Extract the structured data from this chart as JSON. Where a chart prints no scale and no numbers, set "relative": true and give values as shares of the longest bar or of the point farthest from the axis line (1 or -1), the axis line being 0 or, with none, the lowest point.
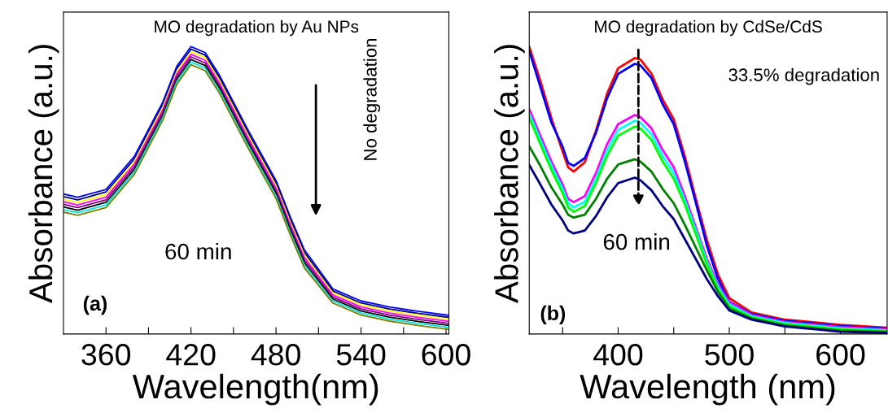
{
  "chart_data": [
    {
      "type": "line",
      "relative": true,
      "title": "MO degradation by Au NPs",
      "xlabel": "Wavelength(nm)",
      "ylabel": "Absorbance (a.u.)",
      "xlim": [
        330,
        602
      ],
      "xticks": [
        360,
        {
          "value": 390,
          "label": null
        },
        420,
        {
          "value": 450,
          "label": null
        },
        480,
        {
          "value": 510,
          "label": null
        },
        540,
        {
          "value": 570,
          "label": null
        },
        600
      ],
      "tick_labels": "x",
      "marker": "none",
      "line_style": "solid",
      "annotations": [
        "No degradation",
        "60 min",
        "(a)"
      ],
      "x": [
        330,
        340,
        360,
        380,
        400,
        410,
        420,
        430,
        440,
        460,
        480,
        490,
        500,
        520,
        540,
        560,
        580,
        602
      ],
      "series": [
        {
          "color": "#0000ff",
          "values": [
            0.487,
            0.476,
            0.503,
            0.618,
            0.806,
            0.932,
            1.0,
            0.979,
            0.901,
            0.712,
            0.534,
            0.408,
            0.293,
            0.157,
            0.115,
            0.094,
            0.079,
            0.065
          ]
        },
        {
          "color": "#000080",
          "values": [
            0.478,
            0.467,
            0.494,
            0.609,
            0.797,
            0.923,
            0.991,
            0.97,
            0.892,
            0.703,
            0.525,
            0.399,
            0.284,
            0.15,
            0.108,
            0.087,
            0.072,
            0.058
          ]
        },
        {
          "color": "#ffff00",
          "values": [
            0.469,
            0.458,
            0.485,
            0.6,
            0.788,
            0.914,
            0.982,
            0.961,
            0.883,
            0.694,
            0.516,
            0.39,
            0.275,
            0.143,
            0.101,
            0.08,
            0.065,
            0.051
          ]
        },
        {
          "color": "#ff00ff",
          "values": [
            0.46,
            0.449,
            0.476,
            0.591,
            0.779,
            0.905,
            0.973,
            0.952,
            0.874,
            0.685,
            0.507,
            0.381,
            0.266,
            0.136,
            0.094,
            0.073,
            0.058,
            0.044
          ]
        },
        {
          "color": "#800080",
          "values": [
            0.451,
            0.44,
            0.467,
            0.582,
            0.77,
            0.896,
            0.964,
            0.943,
            0.865,
            0.676,
            0.498,
            0.372,
            0.257,
            0.129,
            0.087,
            0.066,
            0.051,
            0.037
          ]
        },
        {
          "color": "#000000",
          "values": [
            0.442,
            0.431,
            0.458,
            0.573,
            0.761,
            0.887,
            0.955,
            0.934,
            0.856,
            0.667,
            0.489,
            0.363,
            0.248,
            0.122,
            0.08,
            0.059,
            0.044,
            0.03
          ]
        },
        {
          "color": "#00e5e5",
          "values": [
            0.433,
            0.422,
            0.449,
            0.564,
            0.752,
            0.878,
            0.946,
            0.925,
            0.847,
            0.658,
            0.48,
            0.354,
            0.239,
            0.115,
            0.073,
            0.052,
            0.037,
            0.023
          ]
        },
        {
          "color": "#808000",
          "values": [
            0.424,
            0.413,
            0.44,
            0.555,
            0.743,
            0.869,
            0.937,
            0.916,
            0.838,
            0.649,
            0.471,
            0.345,
            0.23,
            0.108,
            0.066,
            0.045,
            0.03,
            0.016
          ]
        }
      ]
    },
    {
      "type": "line",
      "relative": true,
      "title": "MO degradation by CdSe/CdS",
      "xlabel": "Wavelength (nm)",
      "ylabel": "Absorbance (a.u.)",
      "xlim": [
        320,
        642
      ],
      "xticks": [
        {
          "value": 350,
          "label": null
        },
        400,
        {
          "value": 450,
          "label": null
        },
        500,
        {
          "value": 550,
          "label": null
        },
        600
      ],
      "tick_labels": "x",
      "marker": "none",
      "line_style": "solid",
      "annotations": [
        "33.5% degradation",
        "60 min",
        "(b)"
      ],
      "x": [
        320,
        330,
        340,
        350,
        355,
        360,
        370,
        380,
        390,
        400,
        415,
        420,
        430,
        440,
        450,
        460,
        470,
        480,
        490,
        500,
        520,
        550,
        600,
        642
      ],
      "series": [
        {
          "color": "#ff0000",
          "values": [
            1.0,
            0.88,
            0.75,
            0.635,
            0.58,
            0.565,
            0.598,
            0.707,
            0.836,
            0.925,
            0.96,
            0.955,
            0.905,
            0.816,
            0.747,
            0.618,
            0.469,
            0.325,
            0.205,
            0.125,
            0.075,
            0.05,
            0.032,
            0.022
          ]
        },
        {
          "color": "#0000ff",
          "values": [
            0.985,
            0.86,
            0.735,
            0.652,
            0.595,
            0.585,
            0.612,
            0.7,
            0.82,
            0.905,
            0.94,
            0.935,
            0.89,
            0.8,
            0.73,
            0.6,
            0.455,
            0.305,
            0.19,
            0.112,
            0.07,
            0.046,
            0.028,
            0.019
          ]
        },
        {
          "color": "#ff00ff",
          "values": [
            0.782,
            0.69,
            0.6,
            0.52,
            0.47,
            0.459,
            0.48,
            0.56,
            0.66,
            0.73,
            0.762,
            0.755,
            0.715,
            0.64,
            0.58,
            0.48,
            0.37,
            0.26,
            0.17,
            0.11,
            0.066,
            0.042,
            0.024,
            0.016
          ]
        },
        {
          "color": "#00ffff",
          "values": [
            0.767,
            0.675,
            0.585,
            0.505,
            0.455,
            0.44,
            0.46,
            0.54,
            0.64,
            0.71,
            0.742,
            0.735,
            0.695,
            0.62,
            0.56,
            0.465,
            0.36,
            0.25,
            0.162,
            0.103,
            0.062,
            0.038,
            0.02,
            0.013
          ]
        },
        {
          "color": "#00ff00",
          "values": [
            0.752,
            0.66,
            0.57,
            0.49,
            0.44,
            0.425,
            0.445,
            0.525,
            0.62,
            0.69,
            0.722,
            0.715,
            0.675,
            0.6,
            0.54,
            0.45,
            0.345,
            0.24,
            0.154,
            0.096,
            0.058,
            0.034,
            0.016,
            0.01
          ]
        },
        {
          "color": "#008000",
          "values": [
            0.653,
            0.585,
            0.51,
            0.45,
            0.415,
            0.405,
            0.415,
            0.47,
            0.54,
            0.59,
            0.608,
            0.6,
            0.565,
            0.505,
            0.455,
            0.38,
            0.3,
            0.22,
            0.145,
            0.089,
            0.054,
            0.03,
            0.012,
            0.007
          ]
        },
        {
          "color": "#000080",
          "values": [
            0.588,
            0.52,
            0.45,
            0.395,
            0.36,
            0.35,
            0.36,
            0.41,
            0.475,
            0.525,
            0.544,
            0.535,
            0.5,
            0.445,
            0.4,
            0.33,
            0.26,
            0.19,
            0.13,
            0.082,
            0.05,
            0.026,
            0.008,
            0.004
          ]
        }
      ]
    }
  ]
}
